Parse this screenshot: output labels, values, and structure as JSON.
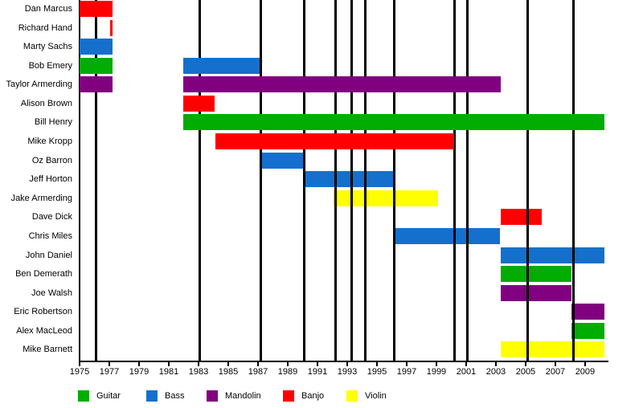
{
  "chart_data": {
    "type": "timeline",
    "title": "",
    "x_axis": {
      "min": 1975,
      "max": 2010.3,
      "tick_years": [
        1975,
        1977,
        1979,
        1981,
        1983,
        1985,
        1987,
        1989,
        1991,
        1993,
        1995,
        1997,
        1999,
        2001,
        2003,
        2005,
        2007,
        2009
      ]
    },
    "event_lines_years": [
      1976.1,
      1983.1,
      1987.2,
      1990.1,
      1992.2,
      1993.3,
      1994.2,
      1996.15,
      2000.2,
      2001.1,
      2005.15,
      2008.2
    ],
    "colors": {
      "Guitar": "#00AD00",
      "Bass": "#1470CC",
      "Mandolin": "#800080",
      "Banjo": "#FF0000",
      "Violin": "#FFFF00"
    },
    "legend": [
      {
        "label": "Guitar",
        "color": "#00AD00"
      },
      {
        "label": "Bass",
        "color": "#1470CC"
      },
      {
        "label": "Mandolin",
        "color": "#800080"
      },
      {
        "label": "Banjo",
        "color": "#FF0000"
      },
      {
        "label": "Violin",
        "color": "#FFFF00"
      }
    ],
    "members": [
      {
        "name": "Dan Marcus",
        "layer": "front",
        "segments": [
          {
            "instrument": "Banjo",
            "start": 1975,
            "end": 1977.2
          }
        ]
      },
      {
        "name": "Richard Hand",
        "layer": "front",
        "segments": [
          {
            "instrument": "Banjo",
            "start": 1977.05,
            "end": 1977.22
          }
        ]
      },
      {
        "name": "Marty Sachs",
        "layer": "front",
        "segments": [
          {
            "instrument": "Bass",
            "start": 1975,
            "end": 1977.2
          }
        ]
      },
      {
        "name": "Bob Emery",
        "layer": "front",
        "segments": [
          {
            "instrument": "Guitar",
            "start": 1975,
            "end": 1977.2
          },
          {
            "instrument": "Bass",
            "start": 1982,
            "end": 1987.1
          }
        ]
      },
      {
        "name": "Taylor Armerding",
        "layer": "front",
        "segments": [
          {
            "instrument": "Mandolin",
            "start": 1975,
            "end": 1977.2
          },
          {
            "instrument": "Mandolin",
            "start": 1982,
            "end": 2003.3
          }
        ]
      },
      {
        "name": "Alison Brown",
        "layer": "front",
        "segments": [
          {
            "instrument": "Banjo",
            "start": 1982,
            "end": 1984.1
          }
        ]
      },
      {
        "name": "Bill Henry",
        "layer": "front",
        "segments": [
          {
            "instrument": "Guitar",
            "start": 1982,
            "end": 2010.3
          }
        ]
      },
      {
        "name": "Mike Kropp",
        "layer": "front",
        "segments": [
          {
            "instrument": "Banjo",
            "start": 1984.15,
            "end": 2000.2
          }
        ]
      },
      {
        "name": "Oz Barron",
        "layer": "back",
        "segments": [
          {
            "instrument": "Bass",
            "start": 1987.1,
            "end": 1990.05
          }
        ]
      },
      {
        "name": "Jeff Horton",
        "layer": "back",
        "segments": [
          {
            "instrument": "Bass",
            "start": 1990.1,
            "end": 1996.15
          }
        ]
      },
      {
        "name": "Jake Armerding",
        "layer": "back",
        "segments": [
          {
            "instrument": "Violin",
            "start": 1992.1,
            "end": 1999.1
          }
        ]
      },
      {
        "name": "Dave Dick",
        "layer": "back",
        "segments": [
          {
            "instrument": "Banjo",
            "start": 2003.3,
            "end": 2006.1
          }
        ]
      },
      {
        "name": "Chris Miles",
        "layer": "back",
        "segments": [
          {
            "instrument": "Bass",
            "start": 1996.15,
            "end": 2003.3
          }
        ]
      },
      {
        "name": "John Daniel",
        "layer": "back",
        "segments": [
          {
            "instrument": "Bass",
            "start": 2003.3,
            "end": 2010.3
          }
        ]
      },
      {
        "name": "Ben Demerath",
        "layer": "back",
        "segments": [
          {
            "instrument": "Guitar",
            "start": 2003.3,
            "end": 2008.1
          }
        ]
      },
      {
        "name": "Joe Walsh",
        "layer": "back",
        "segments": [
          {
            "instrument": "Mandolin",
            "start": 2003.3,
            "end": 2008.1
          }
        ]
      },
      {
        "name": "Eric Robertson",
        "layer": "back",
        "segments": [
          {
            "instrument": "Mandolin",
            "start": 2008.1,
            "end": 2010.3
          }
        ]
      },
      {
        "name": "Alex MacLeod",
        "layer": "back",
        "segments": [
          {
            "instrument": "Guitar",
            "start": 2008.1,
            "end": 2010.3
          }
        ]
      },
      {
        "name": "Mike Barnett",
        "layer": "back",
        "segments": [
          {
            "instrument": "Violin",
            "start": 2003.3,
            "end": 2010.3
          }
        ]
      }
    ]
  }
}
